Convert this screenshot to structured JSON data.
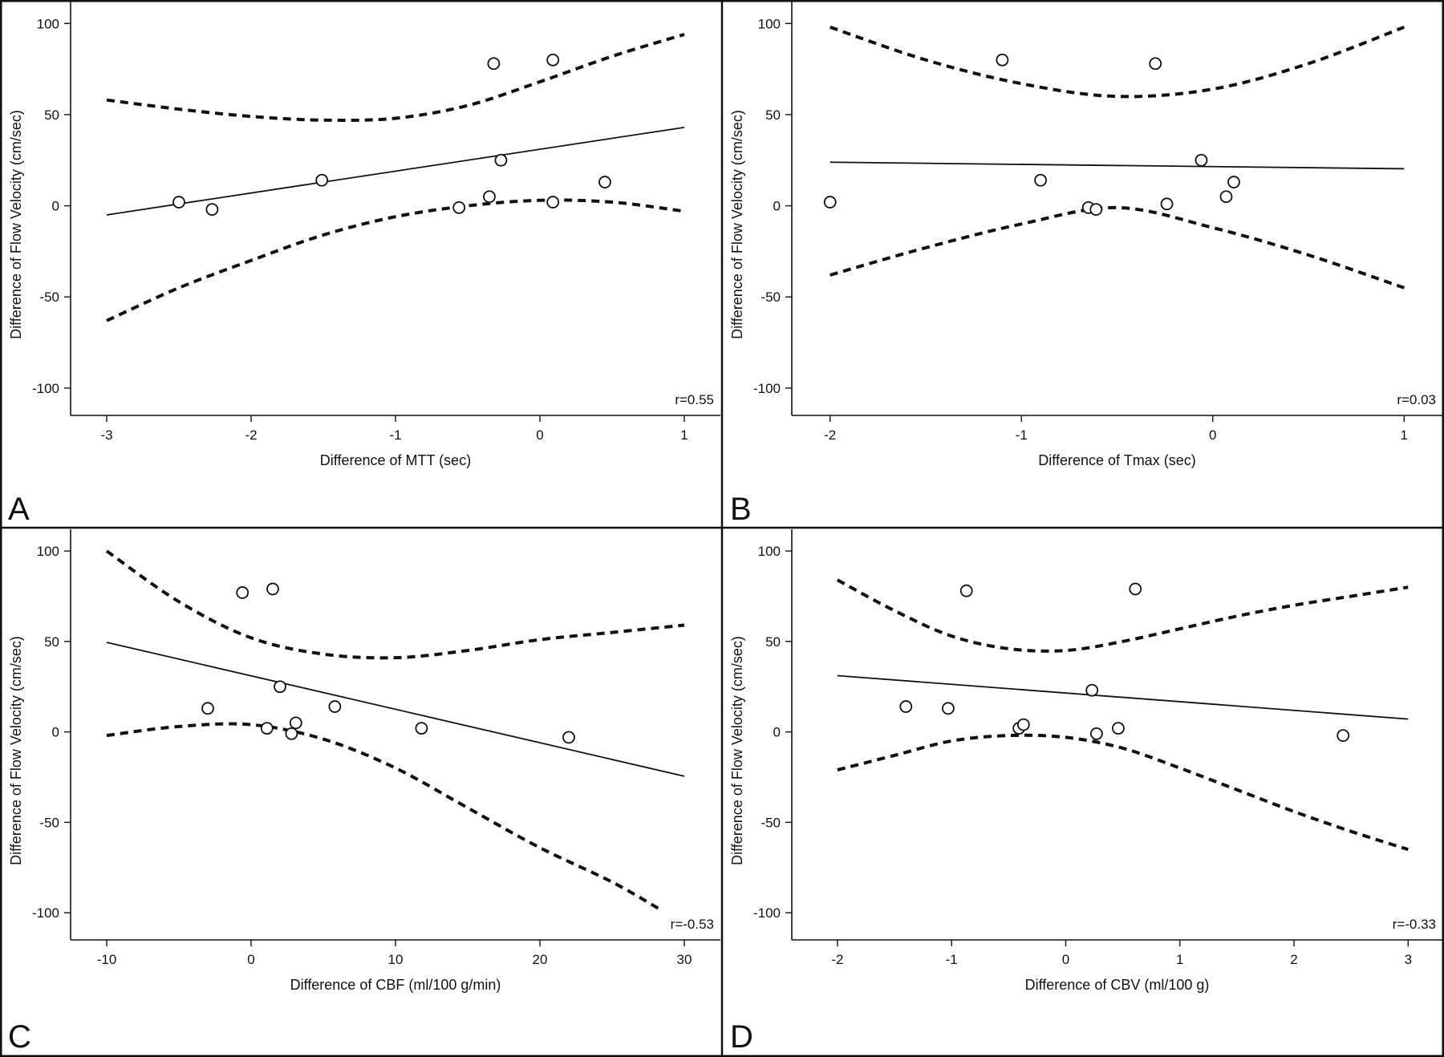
{
  "colors": {
    "ink": "#111111",
    "background": "#ffffff"
  },
  "chart_data": [
    {
      "panel": "A",
      "type": "scatter",
      "xlabel": "Difference of MTT (sec)",
      "ylabel": "Difference of Flow Velocity (cm/sec)",
      "annotation": "r=0.55",
      "xlim": [
        -3.25,
        1.25
      ],
      "ylim": [
        -115,
        112
      ],
      "xticks": [
        -3,
        -2,
        -1,
        0,
        1
      ],
      "yticks": [
        -100,
        -50,
        0,
        50,
        100
      ],
      "points": [
        [
          -2.5,
          2
        ],
        [
          -2.27,
          -2
        ],
        [
          -1.51,
          14
        ],
        [
          -0.56,
          -1
        ],
        [
          -0.35,
          5
        ],
        [
          -0.32,
          78
        ],
        [
          -0.27,
          25
        ],
        [
          0.09,
          80
        ],
        [
          0.09,
          2
        ],
        [
          0.45,
          13
        ]
      ],
      "fit": {
        "slope": 12.0,
        "intercept": 31
      },
      "ci_upper": [
        [
          -3,
          58
        ],
        [
          -2.5,
          53
        ],
        [
          -2,
          49
        ],
        [
          -1.5,
          47
        ],
        [
          -1,
          48
        ],
        [
          -0.5,
          55
        ],
        [
          0,
          68
        ],
        [
          0.5,
          82
        ],
        [
          1,
          94
        ]
      ],
      "ci_lower": [
        [
          -3,
          -63
        ],
        [
          -2.5,
          -45
        ],
        [
          -2,
          -30
        ],
        [
          -1.5,
          -16
        ],
        [
          -1,
          -6
        ],
        [
          -0.5,
          0
        ],
        [
          0,
          3
        ],
        [
          0.5,
          2
        ],
        [
          1,
          -3
        ]
      ],
      "grid": false
    },
    {
      "panel": "B",
      "type": "scatter",
      "xlabel": "Difference of Tmax (sec)",
      "ylabel": "Difference of Flow Velocity (cm/sec)",
      "annotation": "r=0.03",
      "xlim": [
        -2.2,
        1.2
      ],
      "ylim": [
        -115,
        112
      ],
      "xticks": [
        -2,
        -1,
        0,
        1
      ],
      "yticks": [
        -100,
        -50,
        0,
        50,
        100
      ],
      "points": [
        [
          -2.0,
          2
        ],
        [
          -1.1,
          80
        ],
        [
          -0.9,
          14
        ],
        [
          -0.65,
          -1
        ],
        [
          -0.61,
          -2
        ],
        [
          -0.3,
          78
        ],
        [
          -0.24,
          1
        ],
        [
          -0.06,
          25
        ],
        [
          0.07,
          5
        ],
        [
          0.11,
          13
        ]
      ],
      "fit": {
        "slope": -1.2,
        "intercept": 21.5
      },
      "ci_upper": [
        [
          -2,
          98
        ],
        [
          -1.5,
          80
        ],
        [
          -1,
          67
        ],
        [
          -0.5,
          60
        ],
        [
          0,
          64
        ],
        [
          0.5,
          78
        ],
        [
          1,
          98
        ]
      ],
      "ci_lower": [
        [
          -2,
          -38
        ],
        [
          -1.5,
          -23
        ],
        [
          -1,
          -10
        ],
        [
          -0.5,
          -1
        ],
        [
          0,
          -12
        ],
        [
          0.5,
          -27
        ],
        [
          1,
          -45
        ]
      ],
      "grid": false
    },
    {
      "panel": "C",
      "type": "scatter",
      "xlabel": "Difference of CBF (ml/100 g/min)",
      "ylabel": "Difference of Flow Velocity (cm/sec)",
      "annotation": "r=-0.53",
      "xlim": [
        -12.5,
        32.5
      ],
      "ylim": [
        -115,
        112
      ],
      "xticks": [
        -10,
        0,
        10,
        20,
        30
      ],
      "yticks": [
        -100,
        -50,
        0,
        50,
        100
      ],
      "points": [
        [
          -3,
          13
        ],
        [
          -0.6,
          77
        ],
        [
          1.1,
          2
        ],
        [
          1.5,
          79
        ],
        [
          2,
          25
        ],
        [
          2.8,
          -1
        ],
        [
          3.1,
          5
        ],
        [
          5.8,
          14
        ],
        [
          11.8,
          2
        ],
        [
          22,
          -3
        ]
      ],
      "fit": {
        "slope": -1.85,
        "intercept": 31
      },
      "ci_upper": [
        [
          -10,
          100
        ],
        [
          -5,
          72
        ],
        [
          0,
          52
        ],
        [
          5,
          43
        ],
        [
          10,
          41
        ],
        [
          15,
          45
        ],
        [
          20,
          51
        ],
        [
          25,
          55
        ],
        [
          30,
          59
        ]
      ],
      "ci_lower": [
        [
          -10,
          -2
        ],
        [
          -5,
          3
        ],
        [
          0,
          4
        ],
        [
          5,
          -4
        ],
        [
          10,
          -20
        ],
        [
          15,
          -42
        ],
        [
          20,
          -64
        ],
        [
          25,
          -83
        ],
        [
          28.5,
          -99
        ]
      ],
      "grid": false
    },
    {
      "panel": "D",
      "type": "scatter",
      "xlabel": "Difference of CBV (ml/100 g)",
      "ylabel": "Difference of Flow Velocity (cm/sec)",
      "annotation": "r=-0.33",
      "xlim": [
        -2.4,
        3.3
      ],
      "ylim": [
        -115,
        112
      ],
      "xticks": [
        -2,
        -1,
        0,
        1,
        2,
        3
      ],
      "yticks": [
        -100,
        -50,
        0,
        50,
        100
      ],
      "points": [
        [
          -1.4,
          14
        ],
        [
          -1.03,
          13
        ],
        [
          -0.87,
          78
        ],
        [
          -0.41,
          2
        ],
        [
          -0.37,
          4
        ],
        [
          0.23,
          23
        ],
        [
          0.27,
          -1
        ],
        [
          0.46,
          2
        ],
        [
          0.61,
          79
        ],
        [
          2.43,
          -2
        ]
      ],
      "fit": {
        "slope": -4.8,
        "intercept": 21.5
      },
      "ci_upper": [
        [
          -2,
          84
        ],
        [
          -1.5,
          67
        ],
        [
          -1,
          53
        ],
        [
          -0.5,
          46
        ],
        [
          0,
          45
        ],
        [
          0.5,
          50
        ],
        [
          1,
          57
        ],
        [
          1.5,
          64
        ],
        [
          2,
          70
        ],
        [
          2.5,
          75
        ],
        [
          3,
          80
        ]
      ],
      "ci_lower": [
        [
          -2,
          -21
        ],
        [
          -1.5,
          -13
        ],
        [
          -1,
          -5
        ],
        [
          -0.5,
          -2
        ],
        [
          0,
          -3
        ],
        [
          0.5,
          -9
        ],
        [
          1,
          -20
        ],
        [
          1.5,
          -32
        ],
        [
          2,
          -44
        ],
        [
          2.5,
          -55
        ],
        [
          3,
          -65
        ]
      ],
      "grid": false
    }
  ]
}
